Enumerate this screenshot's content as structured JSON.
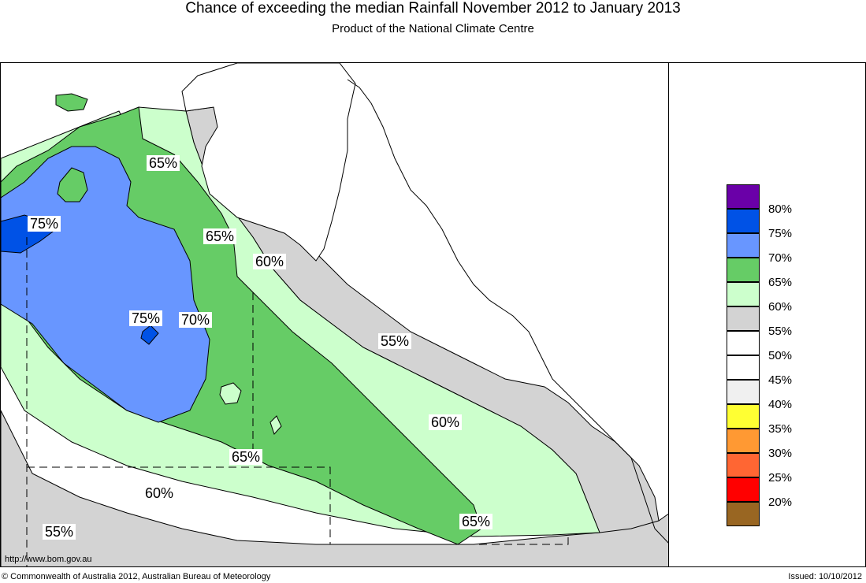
{
  "title": "Chance of exceeding the median Rainfall November 2012 to January 2013",
  "subtitle": "Product of the National Climate Centre",
  "legend": [
    {
      "label": "80%",
      "color": "#6a00a8"
    },
    {
      "label": "75%",
      "color": "#0052e6"
    },
    {
      "label": "70%",
      "color": "#6896ff"
    },
    {
      "label": "65%",
      "color": "#66cc66"
    },
    {
      "label": "60%",
      "color": "#ccffcc"
    },
    {
      "label": "55%",
      "color": "#d3d3d3"
    },
    {
      "label": "50%",
      "color": "#ffffff"
    },
    {
      "label": "45%",
      "color": "#ffffff"
    },
    {
      "label": "40%",
      "color": "#f0f0f0"
    },
    {
      "label": "35%",
      "color": "#ffff33"
    },
    {
      "label": "30%",
      "color": "#ff9933"
    },
    {
      "label": "25%",
      "color": "#ff6633"
    },
    {
      "label": "20%",
      "color": "#ff0000"
    },
    {
      "label": "",
      "color": "#996622"
    }
  ],
  "map_labels": [
    {
      "text": "65%"
    },
    {
      "text": "75%"
    },
    {
      "text": "65%"
    },
    {
      "text": "60%"
    },
    {
      "text": "75%"
    },
    {
      "text": "70%"
    },
    {
      "text": "55%"
    },
    {
      "text": "60%"
    },
    {
      "text": "65%"
    },
    {
      "text": "60%"
    },
    {
      "text": "65%"
    },
    {
      "text": "55%"
    }
  ],
  "footer": {
    "url": "http://www.bom.gov.au",
    "copyright": "© Commonwealth of Australia 2012, Australian Bureau of Meteorology",
    "issued": "Issued: 10/10/2012"
  }
}
